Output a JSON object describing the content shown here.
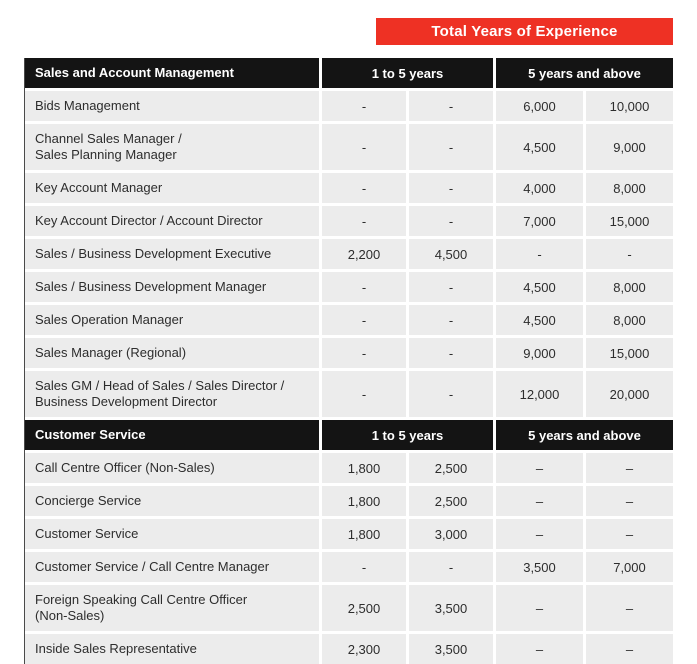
{
  "title_banner": {
    "label": "Total Years of Experience"
  },
  "colors": {
    "accent_red": "#ee3124",
    "header_black": "#141414",
    "row_gray": "#ececec"
  },
  "sections": [
    {
      "title": "Sales and Account Management",
      "columns": [
        "1 to 5 years",
        "5 years and above"
      ],
      "rows": [
        {
          "name": "Bids Management",
          "values": [
            "-",
            "-",
            "6,000",
            "10,000"
          ]
        },
        {
          "name": "Channel Sales Manager /\nSales Planning Manager",
          "values": [
            "-",
            "-",
            "4,500",
            "9,000"
          ]
        },
        {
          "name": "Key Account Manager",
          "values": [
            "-",
            "-",
            "4,000",
            "8,000"
          ]
        },
        {
          "name": "Key Account Director / Account Director",
          "values": [
            "-",
            "-",
            "7,000",
            "15,000"
          ]
        },
        {
          "name": "Sales / Business Development Executive",
          "values": [
            "2,200",
            "4,500",
            "-",
            "-"
          ]
        },
        {
          "name": "Sales / Business Development Manager",
          "values": [
            "-",
            "-",
            "4,500",
            "8,000"
          ]
        },
        {
          "name": "Sales Operation Manager",
          "values": [
            "-",
            "-",
            "4,500",
            "8,000"
          ]
        },
        {
          "name": "Sales Manager (Regional)",
          "values": [
            "-",
            "-",
            "9,000",
            "15,000"
          ]
        },
        {
          "name": "Sales GM / Head of Sales / Sales Director /\nBusiness Development Director",
          "values": [
            "-",
            "-",
            "12,000",
            "20,000"
          ]
        }
      ]
    },
    {
      "title": "Customer Service",
      "columns": [
        "1 to 5 years",
        "5 years and above"
      ],
      "rows": [
        {
          "name": "Call Centre Officer (Non-Sales)",
          "values": [
            "1,800",
            "2,500",
            "–",
            "–"
          ]
        },
        {
          "name": "Concierge Service",
          "values": [
            "1,800",
            "2,500",
            "–",
            "–"
          ]
        },
        {
          "name": "Customer Service",
          "values": [
            "1,800",
            "3,000",
            "–",
            "–"
          ]
        },
        {
          "name": "Customer Service / Call Centre Manager",
          "values": [
            "-",
            "-",
            "3,500",
            "7,000"
          ]
        },
        {
          "name": "Foreign Speaking Call Centre Officer\n(Non-Sales)",
          "values": [
            "2,500",
            "3,500",
            "–",
            "–"
          ]
        },
        {
          "name": "Inside Sales Representative",
          "values": [
            "2,300",
            "3,500",
            "–",
            "–"
          ]
        }
      ]
    }
  ]
}
